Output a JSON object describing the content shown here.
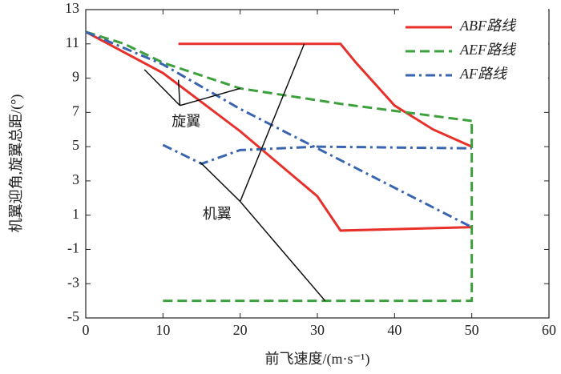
{
  "chart_data": {
    "type": "line",
    "xlabel": "前飞速度/(m·s⁻¹)",
    "ylabel": "机翼迎角,旋翼总距/(°)",
    "xlim": [
      0,
      60
    ],
    "xticks": [
      0,
      10,
      20,
      30,
      40,
      50,
      60
    ],
    "ylim": [
      -5,
      13
    ],
    "yticks": [
      -5,
      -3,
      -1,
      1,
      3,
      5,
      7,
      9,
      11,
      13
    ],
    "legend": "upper right",
    "annotations": [
      "旋翼",
      "机翼"
    ],
    "series": [
      {
        "name": "ABF路线",
        "color": "#e8302a",
        "style": "solid",
        "x": [
          0,
          10,
          20,
          30,
          33,
          50,
          null,
          12,
          33,
          35,
          40,
          45,
          50
        ],
        "values": [
          11.7,
          9.3,
          5.9,
          2.1,
          0.1,
          0.3,
          null,
          11,
          11,
          9.9,
          7.4,
          6.0,
          5.0
        ]
      },
      {
        "name": "AEF路线",
        "color": "#3ca03c",
        "style": "dashed",
        "x": [
          0,
          5,
          10,
          20,
          33,
          50,
          null,
          10,
          50,
          50
        ],
        "values": [
          11.7,
          11,
          9.9,
          8.4,
          7.5,
          6.5,
          null,
          -4,
          -4,
          6.5
        ]
      },
      {
        "name": "AF路线",
        "color": "#3864b0",
        "style": "dashdot",
        "x": [
          0,
          10,
          20,
          30,
          40,
          50,
          null,
          10,
          15,
          20,
          30,
          50
        ],
        "values": [
          11.7,
          9.8,
          7.2,
          4.9,
          2.6,
          0.3,
          null,
          5.1,
          4.0,
          4.8,
          5.0,
          4.9
        ]
      }
    ]
  }
}
